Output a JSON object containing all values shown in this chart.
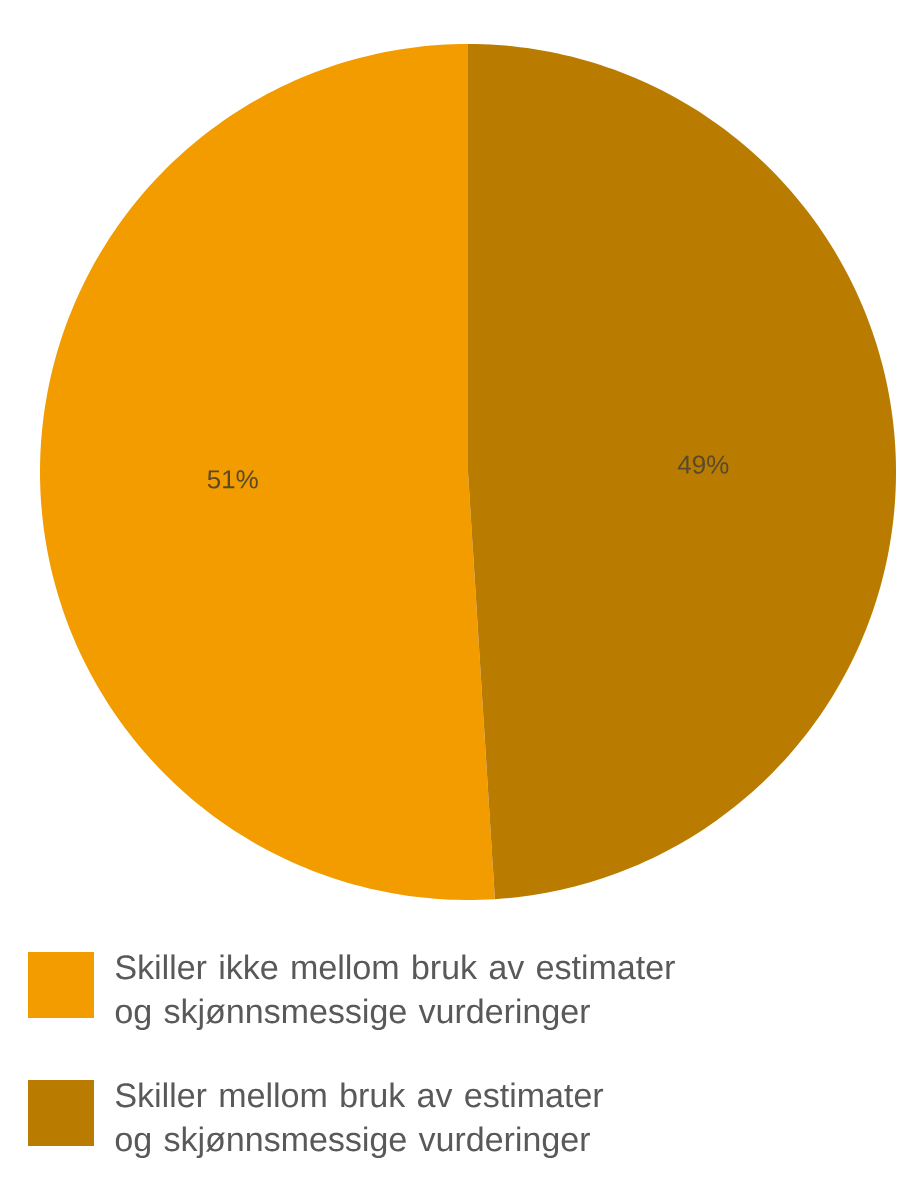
{
  "chart_data": {
    "type": "pie",
    "categories": [
      "Skiller ikke mellom bruk av estimater og skjønnsmessige vurderinger",
      "Skiller mellom bruk av estimater og skjønnsmessige vurderinger"
    ],
    "values": [
      51,
      49
    ],
    "colors": [
      "#f39c00",
      "#b97c00"
    ],
    "value_labels": [
      "51%",
      "49%"
    ],
    "legend": "bottom"
  }
}
